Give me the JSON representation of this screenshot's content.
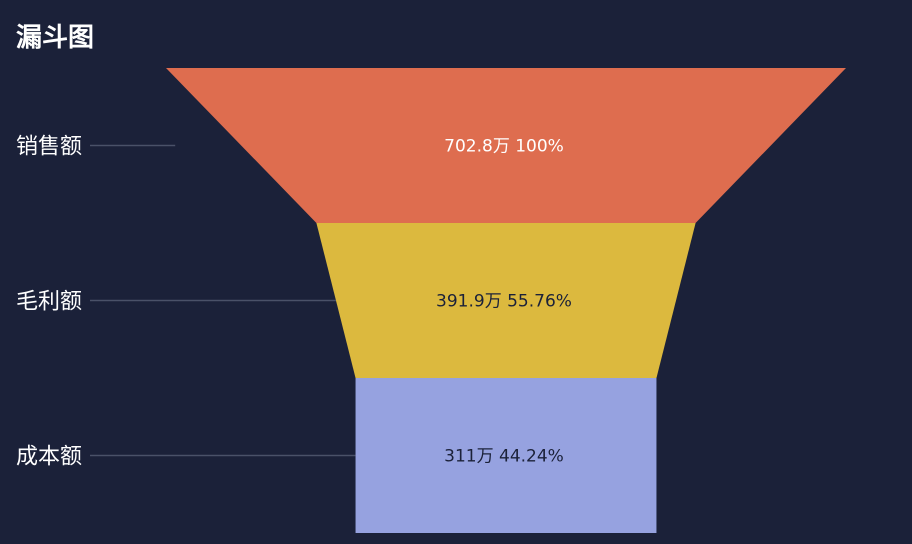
{
  "chart_data": {
    "type": "funnel",
    "title": "漏斗图",
    "unit": "万",
    "stages": [
      {
        "name": "销售额",
        "value": 702.8,
        "value_label": "702.8万 100%",
        "percent": 100,
        "color": "#de6d4f",
        "text_color": "#ffffff"
      },
      {
        "name": "毛利额",
        "value": 391.9,
        "value_label": "391.9万 55.76%",
        "percent": 55.76,
        "color": "#dcb93e",
        "text_color": "#1b2139"
      },
      {
        "name": "成本额",
        "value": 311,
        "value_label": "311万 44.24%",
        "percent": 44.24,
        "color": "#96a2e0",
        "text_color": "#1b2139"
      }
    ]
  }
}
